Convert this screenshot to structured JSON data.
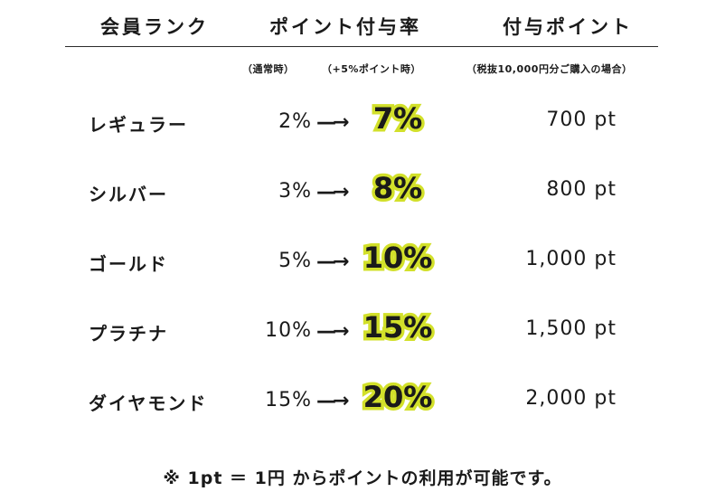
{
  "header": {
    "rank": "会員ランク",
    "rate": "ポイント付与率",
    "points": "付与ポイント"
  },
  "subheader": {
    "normal": "（通常時）",
    "bonus": "（+5%ポイント時）",
    "points_note": "（税抜10,000円分ご購入の場合）"
  },
  "arrow_glyph": "—→",
  "highlight_color": "#d2e02a",
  "rows": [
    {
      "rank": "レギュラー",
      "base": "2%",
      "boost": "7%",
      "points": "700 pt"
    },
    {
      "rank": "シルバー",
      "base": "3%",
      "boost": "8%",
      "points": "800 pt"
    },
    {
      "rank": "ゴールド",
      "base": "5%",
      "boost": "10%",
      "points": "1,000 pt"
    },
    {
      "rank": "プラチナ",
      "base": "10%",
      "boost": "15%",
      "points": "1,500 pt"
    },
    {
      "rank": "ダイヤモンド",
      "base": "15%",
      "boost": "20%",
      "points": "2,000 pt"
    }
  ],
  "footnote": "※ 1pt ＝ 1円 からポイントの利用が可能です。"
}
